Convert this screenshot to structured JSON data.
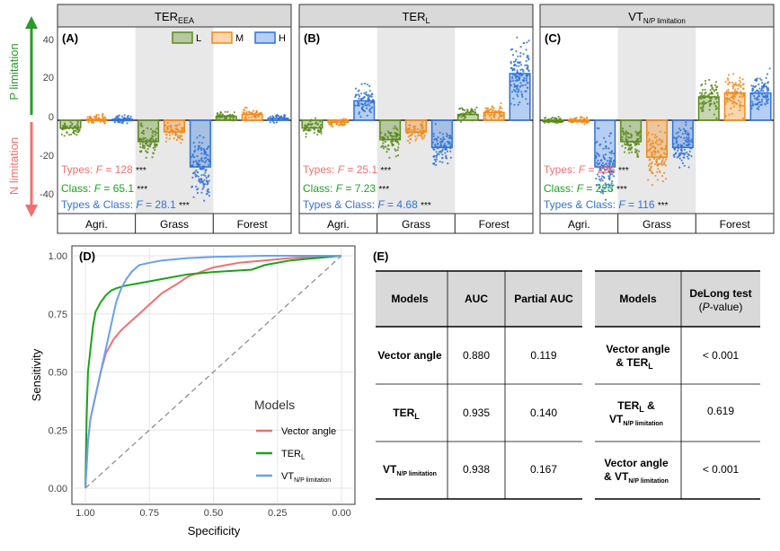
{
  "colors": {
    "L": "#5a8a1c",
    "M": "#f08a1a",
    "H": "#2f72d8",
    "vector_angle": "#f07070",
    "ter_l": "#1aa31a",
    "vt": "#6aa0f0",
    "p_arrow": "#2a9a2a",
    "n_arrow": "#f07070",
    "strip": "#d9d9d9",
    "grass_shade": "#e8e8e8"
  },
  "y_axis_labels": {
    "p_limitation": "P limitation",
    "n_limitation": "N limitation"
  },
  "legend_top": {
    "L": "L",
    "M": "M",
    "H": "H"
  },
  "stats_labels": {
    "types": "Types: ",
    "class": "Class: ",
    "types_class": "Types & Class: ",
    "F": "F",
    "eq": " = ",
    "stars": "***"
  },
  "chart_data": [
    {
      "type": "bar",
      "panel": "(A)",
      "title": "TER",
      "title_sub": "EEA",
      "categories": [
        "Agri.",
        "Grass",
        "Forest"
      ],
      "groups": [
        "L",
        "M",
        "H"
      ],
      "series": [
        {
          "name": "L",
          "values": [
            -4,
            -11,
            2
          ]
        },
        {
          "name": "M",
          "values": [
            0.5,
            -6,
            3
          ]
        },
        {
          "name": "H",
          "values": [
            0.5,
            -24,
            1
          ]
        }
      ],
      "ylim": [
        -48,
        48
      ],
      "yticks": [
        -40,
        -20,
        0,
        20,
        40
      ],
      "stats": {
        "types": "128",
        "class": "65.1",
        "types_class": "28.1"
      }
    },
    {
      "type": "bar",
      "panel": "(B)",
      "title": "TER",
      "title_sub": "L",
      "categories": [
        "Agri.",
        "Grass",
        "Forest"
      ],
      "groups": [
        "L",
        "M",
        "H"
      ],
      "series": [
        {
          "name": "L",
          "values": [
            -4,
            -10,
            3
          ]
        },
        {
          "name": "M",
          "values": [
            -1,
            -6,
            4
          ]
        },
        {
          "name": "H",
          "values": [
            10,
            -14,
            24
          ]
        }
      ],
      "ylim": [
        -48,
        48
      ],
      "stats": {
        "types": "25.1",
        "class": "7.23",
        "types_class": "4.68"
      }
    },
    {
      "type": "bar",
      "panel": "(C)",
      "title": "VT",
      "title_sub": "N/P limitation",
      "categories": [
        "Agri.",
        "Grass",
        "Forest"
      ],
      "groups": [
        "L",
        "M",
        "H"
      ],
      "series": [
        {
          "name": "L",
          "values": [
            0,
            -11,
            12
          ]
        },
        {
          "name": "M",
          "values": [
            0,
            -19,
            14
          ]
        },
        {
          "name": "H",
          "values": [
            -24,
            -14,
            14
          ]
        }
      ],
      "ylim": [
        -48,
        48
      ],
      "stats": {
        "types": "295",
        "class": "223",
        "types_class": "116"
      }
    },
    {
      "type": "line",
      "panel": "(D)",
      "xlabel": "Specificity",
      "ylabel": "Sensitivity",
      "xlim": [
        1.0,
        0.0
      ],
      "ylim": [
        0,
        1
      ],
      "xticks": [
        "1.00",
        "0.75",
        "0.50",
        "0.25",
        "0.00"
      ],
      "yticks": [
        "0.00",
        "0.25",
        "0.50",
        "0.75",
        "1.00"
      ],
      "legend_title": "Models",
      "legend_position": "right",
      "series": [
        {
          "name": "Vector angle",
          "color_key": "vector_angle",
          "x": [
            1.0,
            0.99,
            0.98,
            0.96,
            0.94,
            0.92,
            0.89,
            0.86,
            0.82,
            0.78,
            0.74,
            0.7,
            0.64,
            0.6,
            0.55,
            0.5,
            0.45,
            0.4,
            0.3,
            0.2,
            0.1,
            0.0
          ],
          "y": [
            0.0,
            0.2,
            0.3,
            0.4,
            0.5,
            0.58,
            0.64,
            0.68,
            0.72,
            0.76,
            0.8,
            0.84,
            0.88,
            0.91,
            0.93,
            0.95,
            0.96,
            0.97,
            0.98,
            0.99,
            0.995,
            1.0
          ]
        },
        {
          "name": "TER",
          "name_sub": "L",
          "color_key": "ter_l",
          "x": [
            1.0,
            0.995,
            0.99,
            0.98,
            0.97,
            0.96,
            0.94,
            0.92,
            0.9,
            0.88,
            0.85,
            0.8,
            0.7,
            0.6,
            0.5,
            0.35,
            0.3,
            0.2,
            0.1,
            0.0
          ],
          "y": [
            0.0,
            0.3,
            0.5,
            0.6,
            0.7,
            0.76,
            0.8,
            0.83,
            0.85,
            0.86,
            0.87,
            0.88,
            0.9,
            0.92,
            0.93,
            0.94,
            0.96,
            0.98,
            0.99,
            1.0
          ]
        },
        {
          "name": "VT",
          "name_sub": "N/P limitation",
          "color_key": "vt",
          "x": [
            1.0,
            0.99,
            0.98,
            0.96,
            0.94,
            0.92,
            0.9,
            0.88,
            0.86,
            0.84,
            0.82,
            0.79,
            0.75,
            0.7,
            0.6,
            0.5,
            0.3,
            0.0
          ],
          "y": [
            0.0,
            0.2,
            0.3,
            0.4,
            0.5,
            0.6,
            0.7,
            0.8,
            0.86,
            0.9,
            0.93,
            0.96,
            0.97,
            0.98,
            0.99,
            0.995,
            1.0,
            1.0
          ]
        }
      ]
    },
    {
      "type": "table",
      "panel": "(E)",
      "left_table": {
        "headers": [
          "Models",
          "AUC",
          "Partial AUC"
        ],
        "rows": [
          {
            "model": "Vector angle",
            "model_sub": "",
            "auc": "0.880",
            "pauc": "0.119"
          },
          {
            "model": "TER",
            "model_sub": "L",
            "auc": "0.935",
            "pauc": "0.140"
          },
          {
            "model": "VT",
            "model_sub": "N/P limitation",
            "auc": "0.938",
            "pauc": "0.167"
          }
        ]
      },
      "right_table": {
        "headers": [
          "Models",
          "DeLong test",
          "P",
          "-value"
        ],
        "rows": [
          {
            "line1": "Vector angle",
            "line2": "& TER",
            "line2_sub": "L",
            "line2_pre": "",
            "value": "< 0.001"
          },
          {
            "line1": "TER",
            "line1_sub": "L",
            "line1_post": " &",
            "line2": "VT",
            "line2_sub": "N/P limitation",
            "value": "0.619"
          },
          {
            "line1": "Vector angle",
            "line2": "& VT",
            "line2_sub": "N/P limitation",
            "value": "< 0.001"
          }
        ]
      }
    }
  ]
}
